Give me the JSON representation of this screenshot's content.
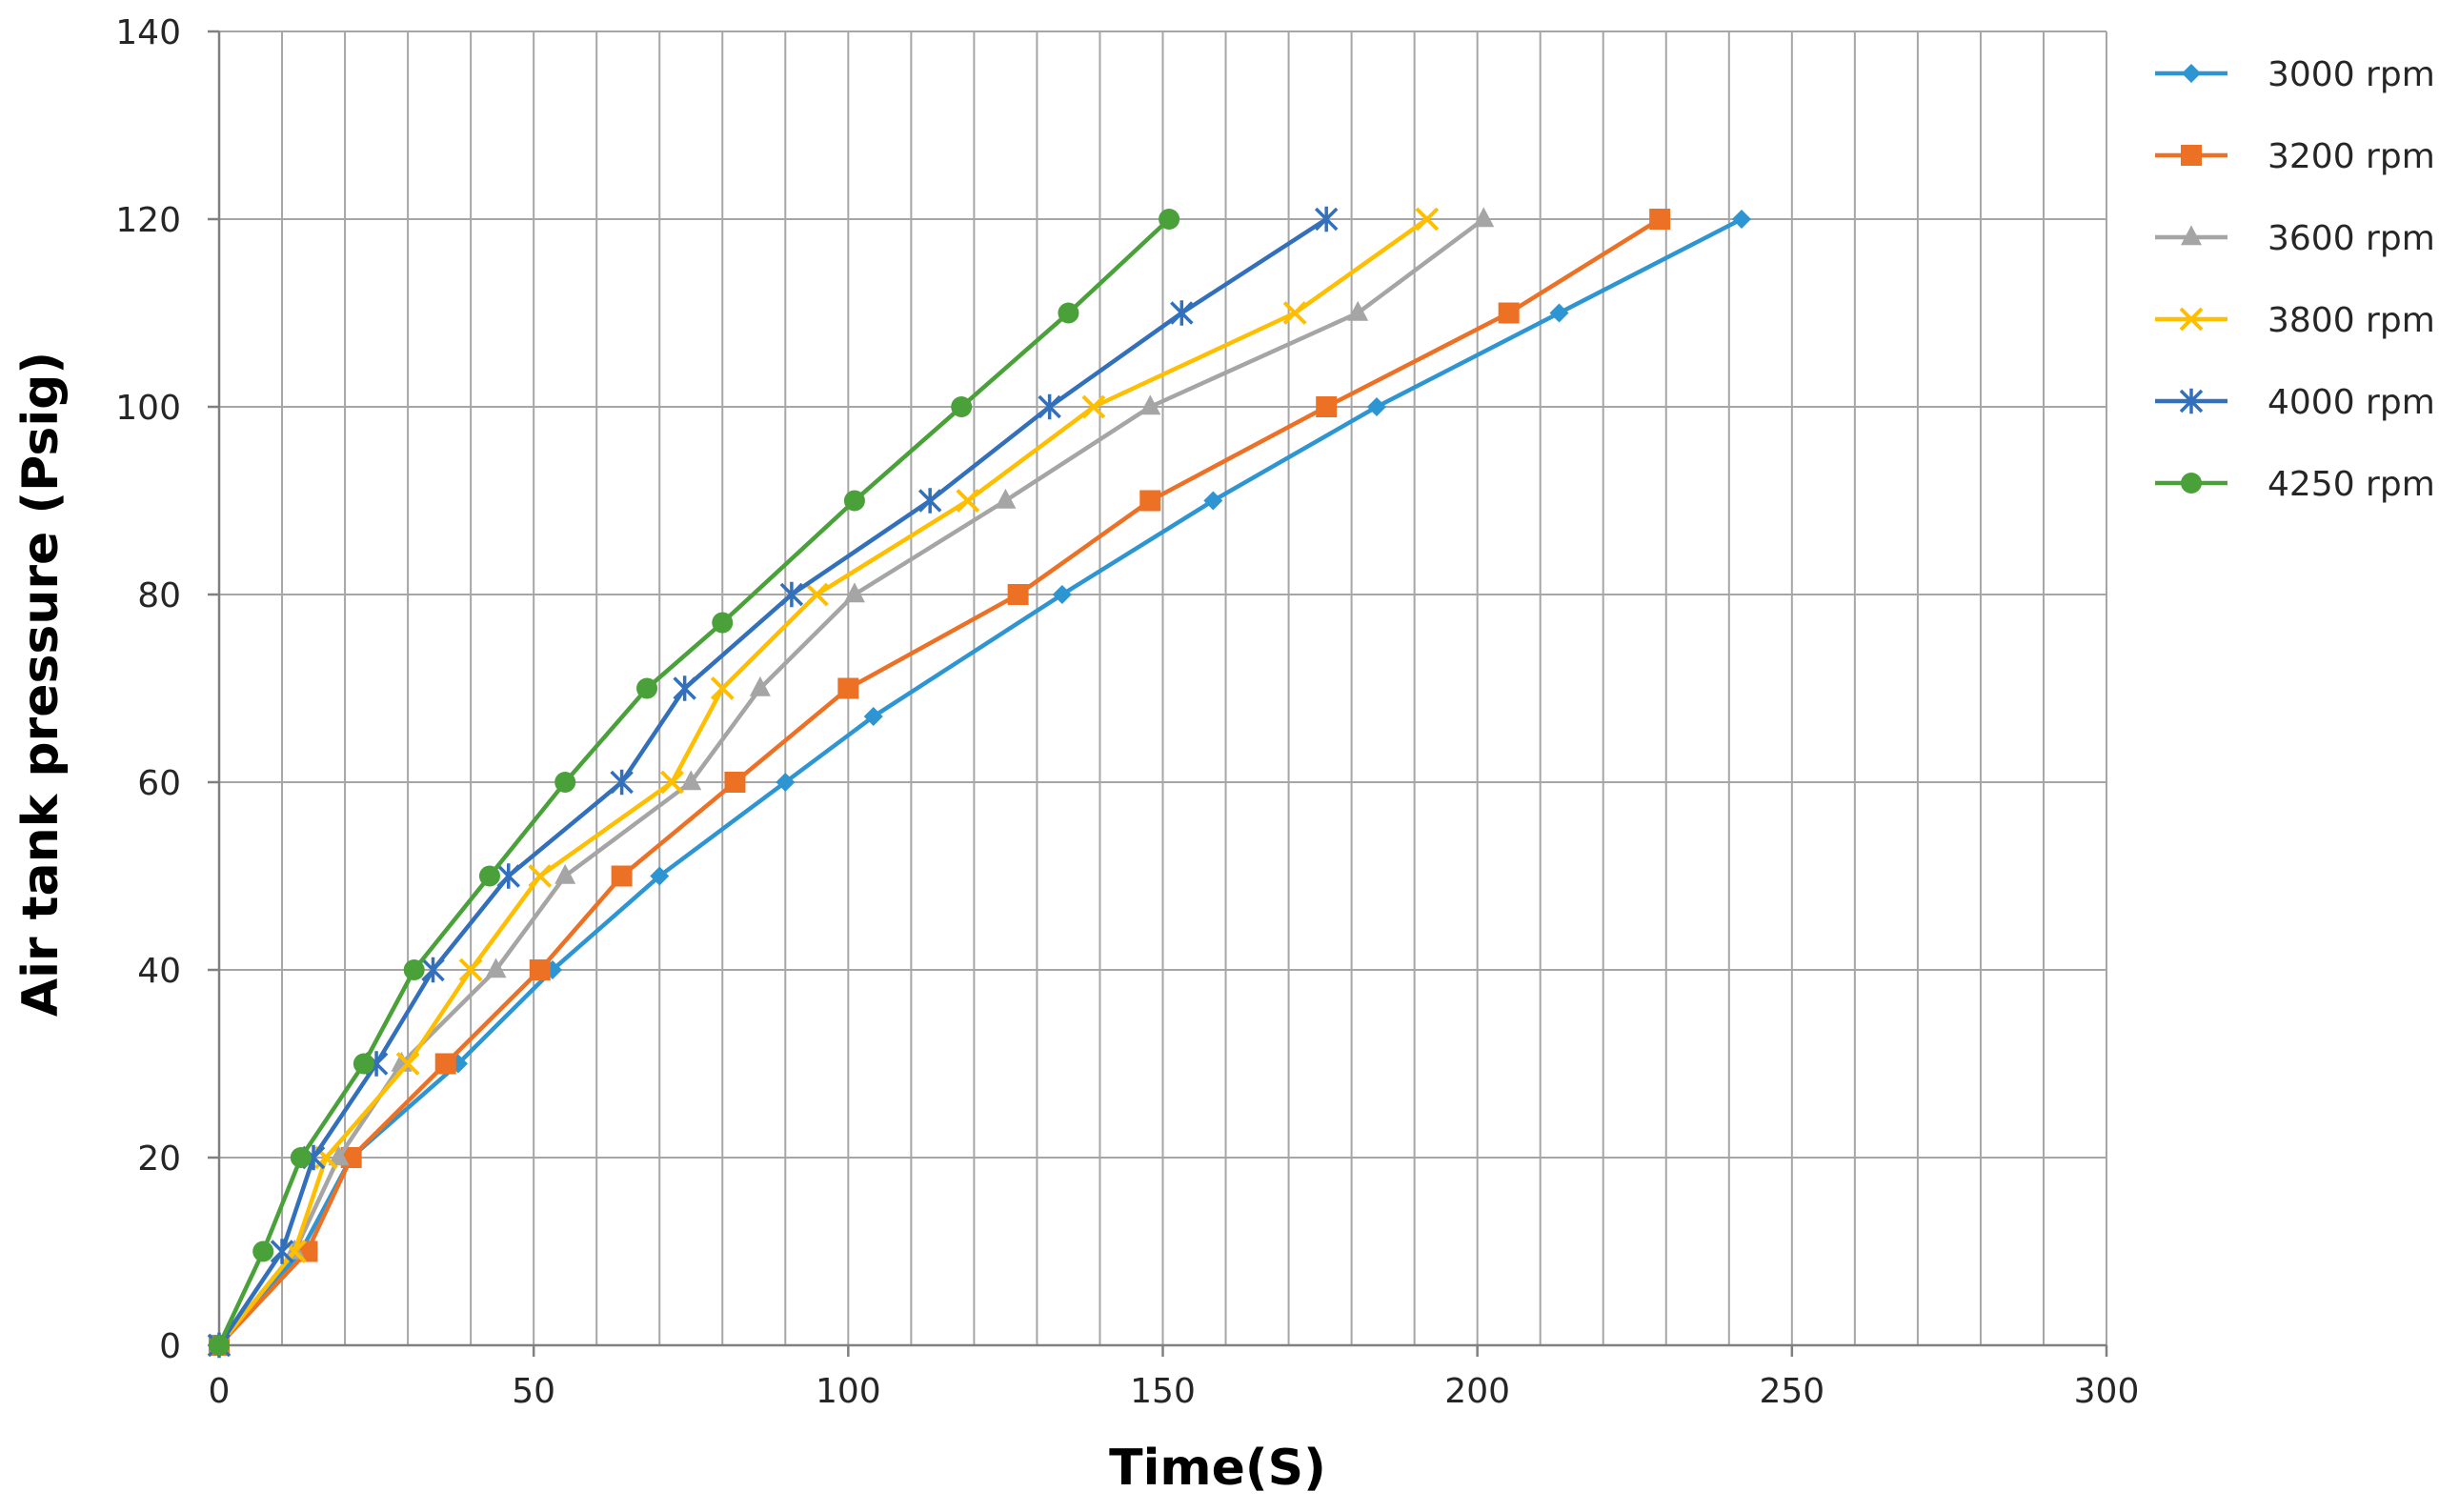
{
  "chart_data": {
    "type": "line",
    "title": "",
    "xlabel": "Time(S)",
    "ylabel": "Air tank pressure (Psig)",
    "xlim": [
      0,
      300
    ],
    "ylim": [
      0,
      140
    ],
    "x_ticks": [
      "0",
      "50",
      "100",
      "150",
      "200",
      "250",
      "300"
    ],
    "y_ticks": [
      "0",
      "20",
      "40",
      "60",
      "80",
      "100",
      "120",
      "140"
    ],
    "grid": true,
    "legend_position": "right",
    "series": [
      {
        "name": "3000 rpm",
        "color": "#2e95d3",
        "marker": "diamond",
        "points": [
          [
            0,
            0
          ],
          [
            13,
            10
          ],
          [
            21,
            20
          ],
          [
            38,
            30
          ],
          [
            53,
            40
          ],
          [
            70,
            50
          ],
          [
            90,
            60
          ],
          [
            104,
            67
          ],
          [
            134,
            80
          ],
          [
            158,
            90
          ],
          [
            184,
            100
          ],
          [
            213,
            110
          ],
          [
            242,
            120
          ]
        ]
      },
      {
        "name": "3200 rpm",
        "color": "#ed7125",
        "marker": "square",
        "points": [
          [
            0,
            0
          ],
          [
            14,
            10
          ],
          [
            21,
            20
          ],
          [
            36,
            30
          ],
          [
            51,
            40
          ],
          [
            64,
            50
          ],
          [
            82,
            60
          ],
          [
            100,
            70
          ],
          [
            127,
            80
          ],
          [
            148,
            90
          ],
          [
            176,
            100
          ],
          [
            205,
            110
          ],
          [
            229,
            120
          ]
        ]
      },
      {
        "name": "3600 rpm",
        "color": "#a5a5a5",
        "marker": "triangle",
        "points": [
          [
            0,
            0
          ],
          [
            12,
            10
          ],
          [
            19,
            20
          ],
          [
            29,
            30
          ],
          [
            44,
            40
          ],
          [
            55,
            50
          ],
          [
            75,
            60
          ],
          [
            86,
            70
          ],
          [
            101,
            80
          ],
          [
            125,
            90
          ],
          [
            148,
            100
          ],
          [
            181,
            110
          ],
          [
            201,
            120
          ]
        ]
      },
      {
        "name": "3800 rpm",
        "color": "#ffbe00",
        "marker": "x",
        "points": [
          [
            0,
            0
          ],
          [
            12,
            10
          ],
          [
            17,
            20
          ],
          [
            30,
            30
          ],
          [
            40,
            40
          ],
          [
            51,
            50
          ],
          [
            72,
            60
          ],
          [
            80,
            70
          ],
          [
            95,
            80
          ],
          [
            119,
            90
          ],
          [
            139,
            100
          ],
          [
            171,
            110
          ],
          [
            192,
            120
          ]
        ]
      },
      {
        "name": "4000 rpm",
        "color": "#3270bc",
        "marker": "asterisk",
        "points": [
          [
            0,
            0
          ],
          [
            10,
            10
          ],
          [
            15,
            20
          ],
          [
            25,
            30
          ],
          [
            34,
            40
          ],
          [
            46,
            50
          ],
          [
            64,
            60
          ],
          [
            74,
            70
          ],
          [
            91,
            80
          ],
          [
            113,
            90
          ],
          [
            132,
            100
          ],
          [
            153,
            110
          ],
          [
            176,
            120
          ]
        ]
      },
      {
        "name": "4250 rpm",
        "color": "#4aa13a",
        "marker": "circle",
        "points": [
          [
            0,
            0
          ],
          [
            7,
            10
          ],
          [
            13,
            20
          ],
          [
            23,
            30
          ],
          [
            31,
            40
          ],
          [
            43,
            50
          ],
          [
            55,
            60
          ],
          [
            68,
            70
          ],
          [
            80,
            77
          ],
          [
            101,
            90
          ],
          [
            118,
            100
          ],
          [
            135,
            110
          ],
          [
            151,
            120
          ]
        ]
      }
    ]
  }
}
